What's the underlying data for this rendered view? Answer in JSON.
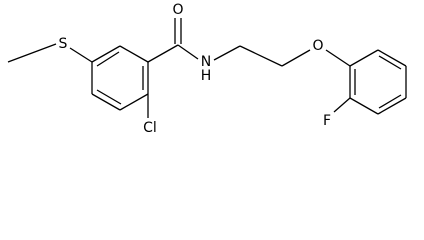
{
  "nodes": [
    {
      "label": "S"
    },
    {
      "label": "O"
    },
    {
      "label": "N"
    },
    {
      "label": "H"
    },
    {
      "label": "O"
    },
    {
      "label": "Cl"
    },
    {
      "label": "F"
    }
  ]
}
